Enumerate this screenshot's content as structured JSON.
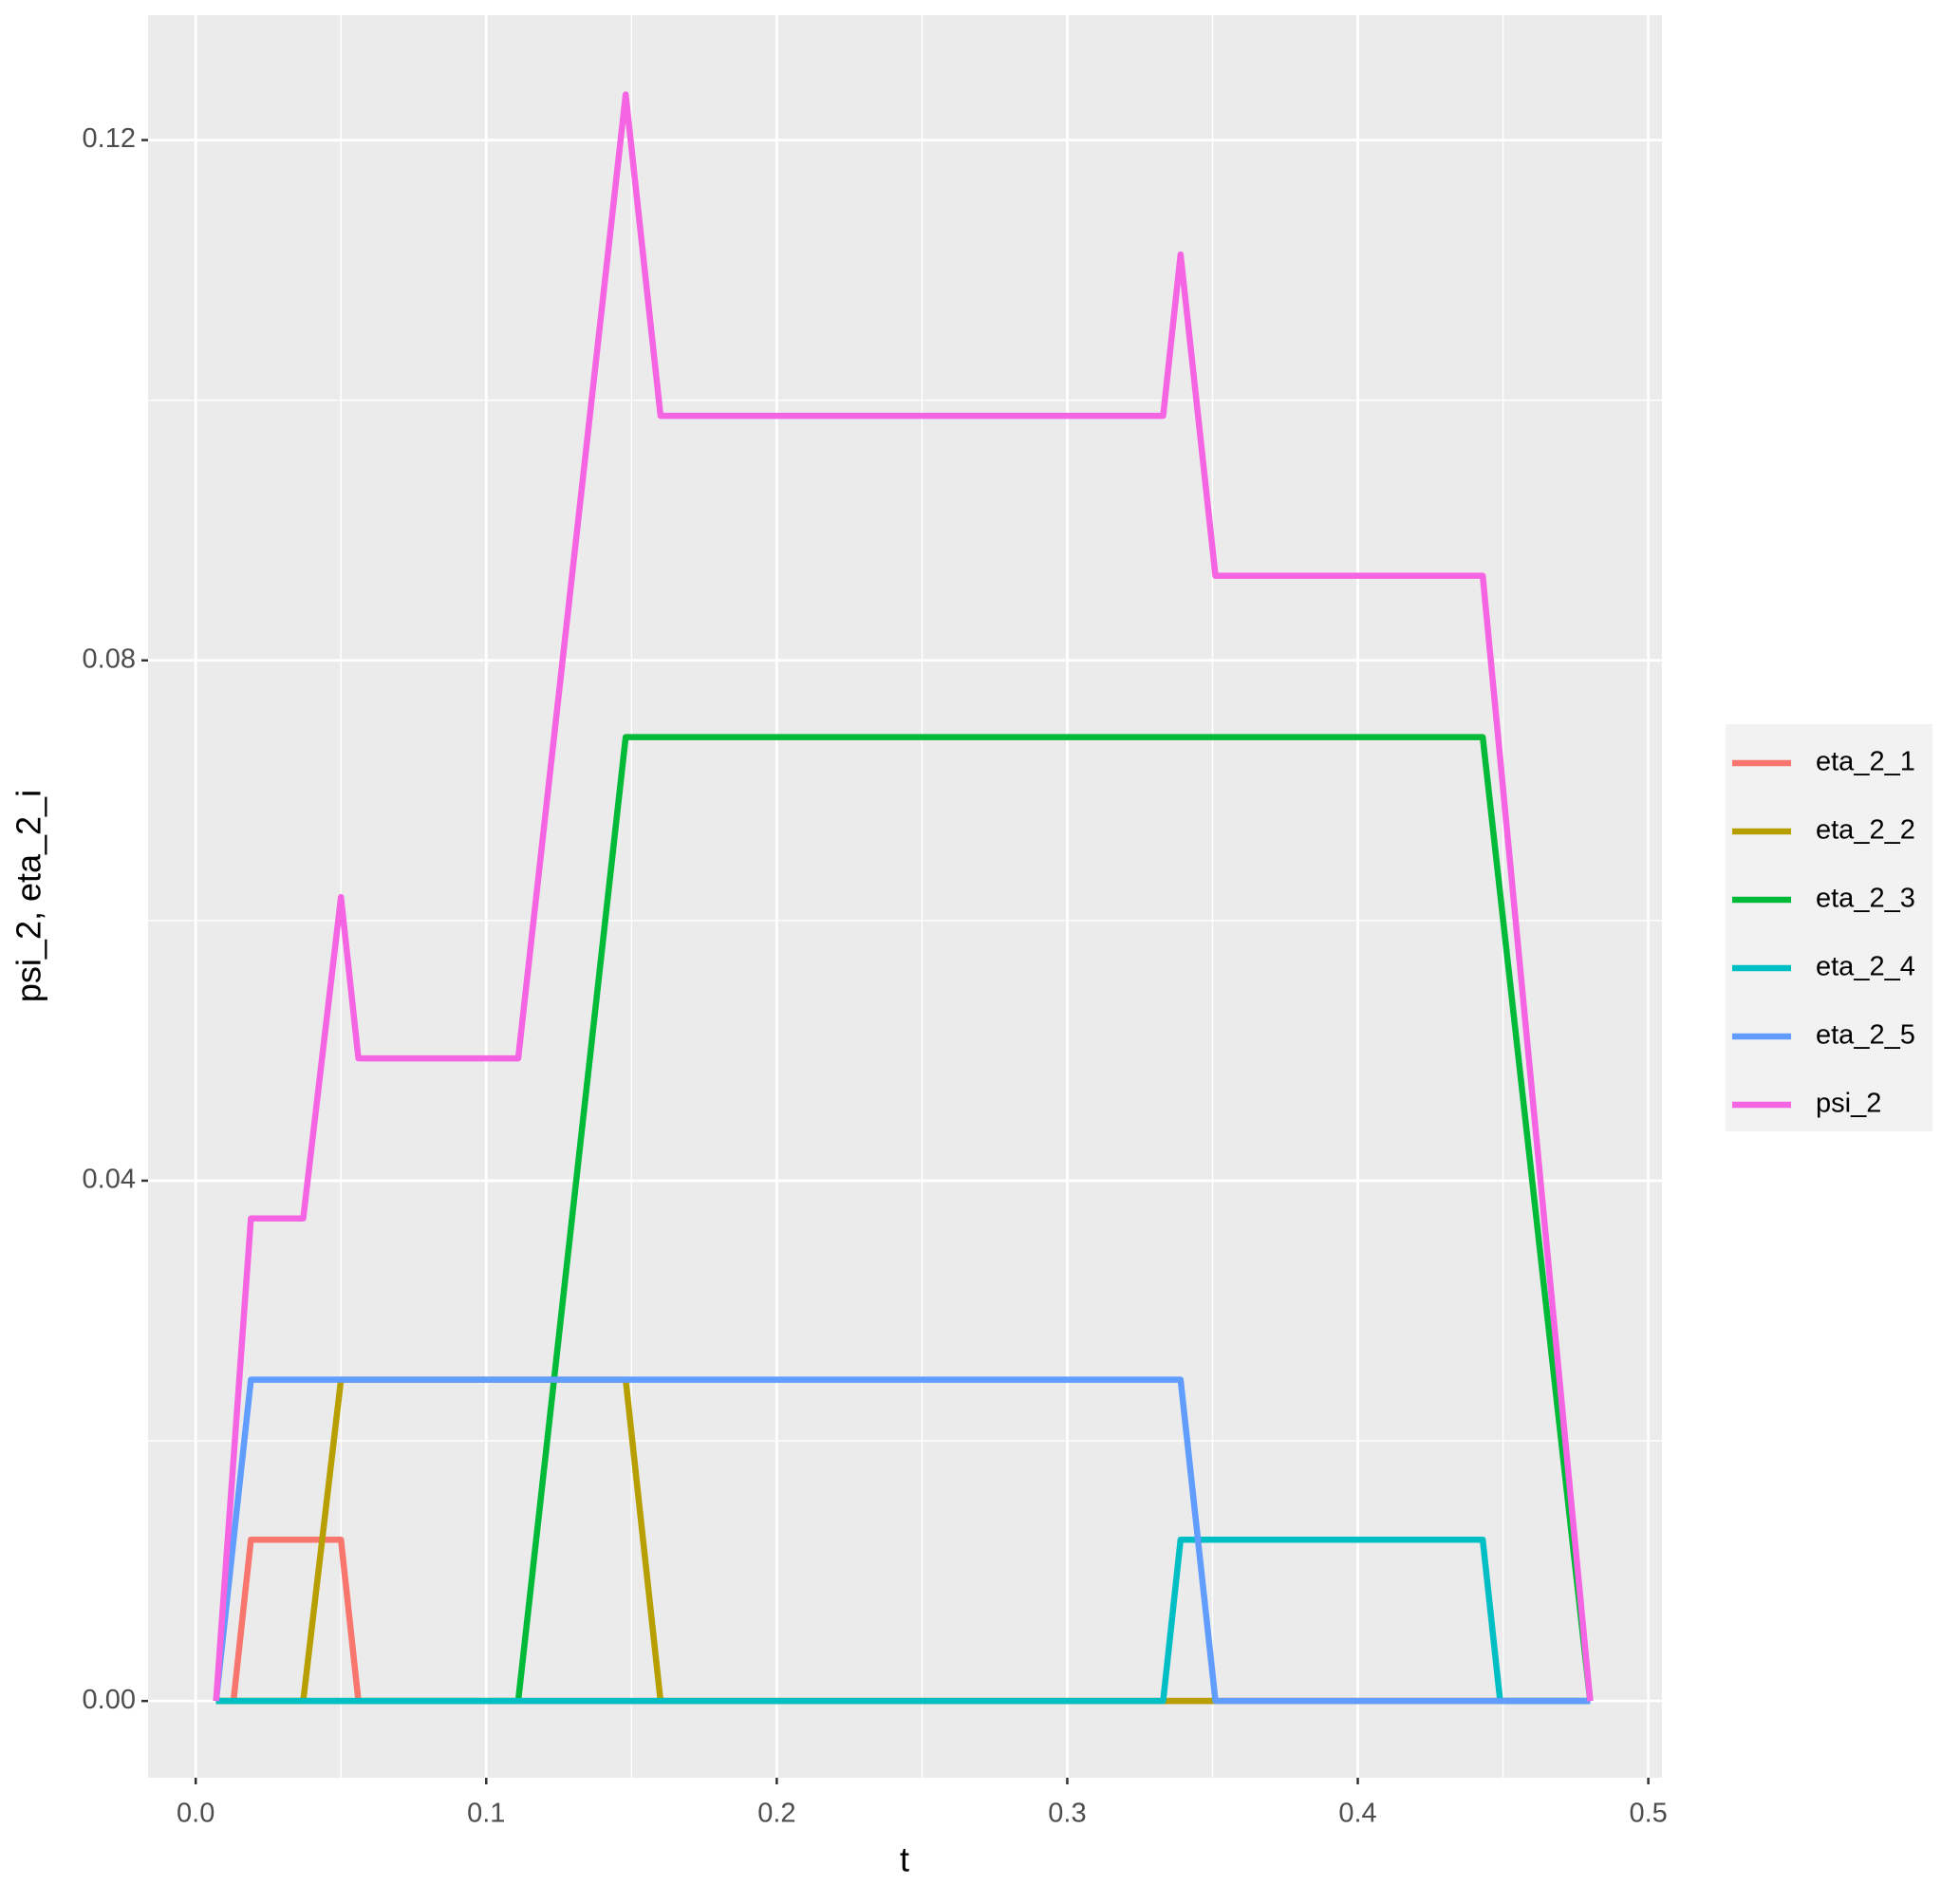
{
  "chart_data": {
    "type": "line",
    "x_label": "t",
    "y_label": "psi_2, eta_2_i",
    "xlim": [
      -0.0164,
      0.5047
    ],
    "ylim": [
      -0.0059,
      0.1296
    ],
    "xticks": [
      {
        "value": 0,
        "label": "0.0"
      },
      0.1,
      0.2,
      0.3,
      0.4,
      0.5
    ],
    "yticks": [
      {
        "value": 0,
        "label": "0.00"
      },
      {
        "value": 0.04,
        "label": "0.04"
      },
      {
        "value": 0.08,
        "label": "0.08"
      },
      {
        "value": 0.12,
        "label": "0.12"
      }
    ],
    "xticks_minor": [
      0.05,
      0.15,
      0.25,
      0.35,
      0.45
    ],
    "yticks_minor": [
      0.02,
      0.06,
      0.1
    ],
    "grid": true,
    "legend": "right",
    "series": [
      {
        "name": "eta_2_1",
        "color": "#f8766d",
        "x": [
          0.007,
          0.013,
          0.019,
          0.05,
          0.056,
          0.48
        ],
        "values": [
          0,
          0,
          0.0124,
          0.0124,
          0,
          0
        ]
      },
      {
        "name": "eta_2_2",
        "color": "#b79f00",
        "x": [
          0.007,
          0.037,
          0.05,
          0.148,
          0.16,
          0.48
        ],
        "values": [
          0,
          0,
          0.0247,
          0.0247,
          0,
          0
        ]
      },
      {
        "name": "eta_2_3",
        "color": "#00ba38",
        "x": [
          0.007,
          0.111,
          0.148,
          0.443,
          0.48
        ],
        "values": [
          0,
          0,
          0.0741,
          0.0741,
          0
        ]
      },
      {
        "name": "eta_2_4",
        "color": "#00bfc4",
        "x": [
          0.007,
          0.333,
          0.339,
          0.443,
          0.449,
          0.48
        ],
        "values": [
          0,
          0,
          0.0124,
          0.0124,
          0,
          0
        ]
      },
      {
        "name": "eta_2_5",
        "color": "#619cff",
        "x": [
          0.007,
          0.019,
          0.339,
          0.351,
          0.48
        ],
        "values": [
          0,
          0.0247,
          0.0247,
          0,
          0
        ]
      },
      {
        "name": "psi_2",
        "color": "#f564e3",
        "x": [
          0.007,
          0.019,
          0.037,
          0.05,
          0.056,
          0.111,
          0.148,
          0.16,
          0.333,
          0.339,
          0.351,
          0.443,
          0.48
        ],
        "values": [
          0,
          0.0371,
          0.0371,
          0.0618,
          0.0494,
          0.0494,
          0.1235,
          0.0988,
          0.0988,
          0.1112,
          0.0865,
          0.0865,
          0
        ]
      }
    ]
  }
}
